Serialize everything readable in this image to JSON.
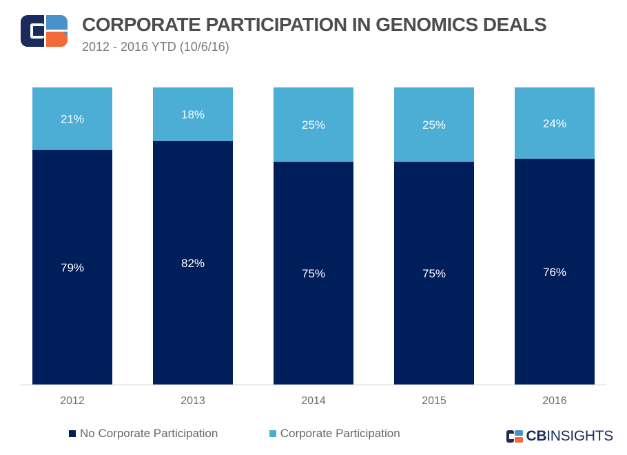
{
  "header": {
    "title": "CORPORATE PARTICIPATION IN GENOMICS DEALS",
    "subtitle": "2012 - 2016 YTD (10/6/16)"
  },
  "colors": {
    "no_corporate": "#001e5a",
    "corporate": "#4cadd5",
    "label_text": "#ffffff",
    "logo_navy": "#1a2b5c",
    "logo_blue": "#4a90c9",
    "logo_orange": "#f26c3a"
  },
  "chart_data": {
    "type": "bar",
    "stacked": "100%",
    "categories": [
      "2012",
      "2013",
      "2014",
      "2015",
      "2016"
    ],
    "series": [
      {
        "name": "No Corporate Participation",
        "values": [
          79,
          82,
          75,
          75,
          76
        ],
        "labels": [
          "79%",
          "82%",
          "75%",
          "75%",
          "76%"
        ]
      },
      {
        "name": "Corporate Participation",
        "values": [
          21,
          18,
          25,
          25,
          24
        ],
        "labels": [
          "21%",
          "18%",
          "25%",
          "25%",
          "24%"
        ]
      }
    ],
    "ylim": [
      0,
      100
    ],
    "legend_position": "bottom-left",
    "grid": false
  },
  "legend": {
    "items": [
      {
        "label": "No Corporate Participation"
      },
      {
        "label": "Corporate Participation"
      }
    ]
  },
  "brand": {
    "bold": "CB",
    "light": "INSIGHTS"
  }
}
